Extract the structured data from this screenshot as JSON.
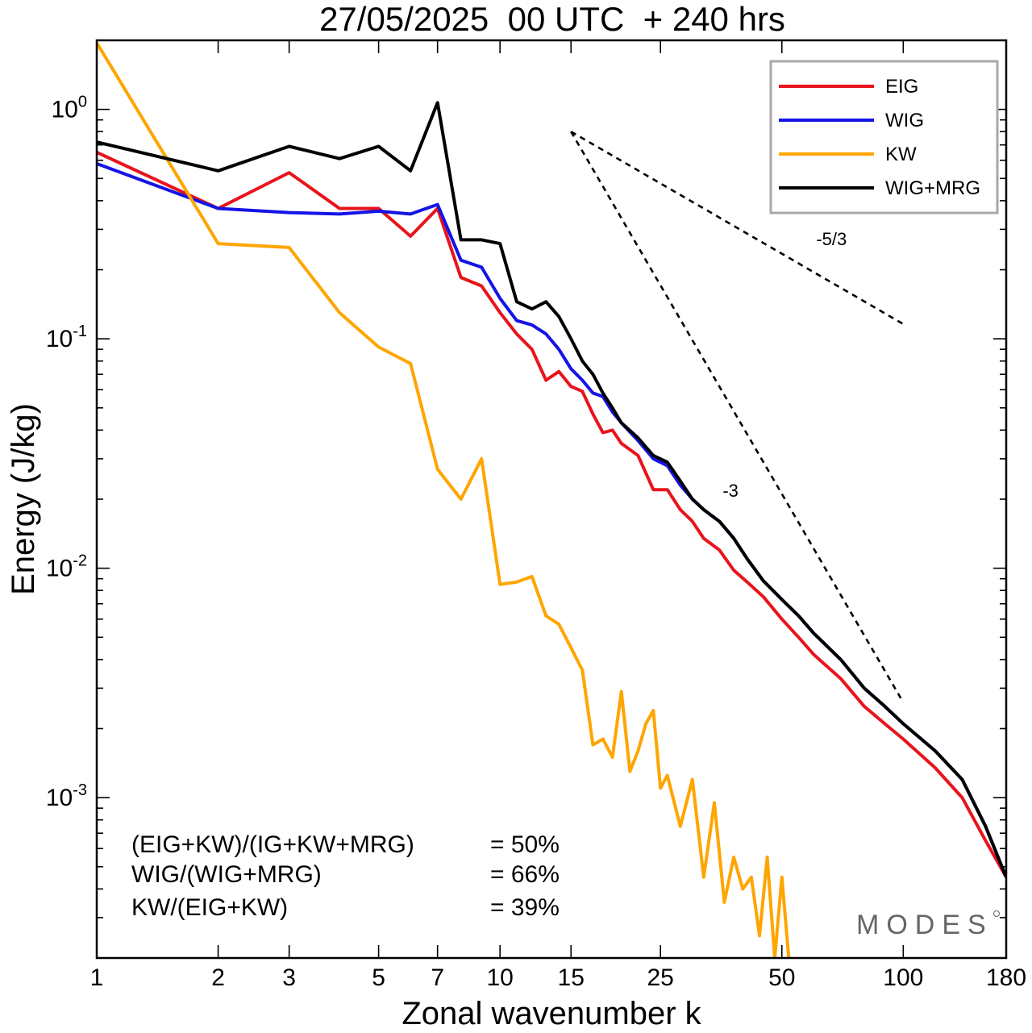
{
  "chart_data": {
    "type": "line",
    "title": "27/05/2025  00 UTC  + 240 hrs",
    "xlabel": "Zonal wavenumber k",
    "ylabel": "Energy (J/kg)",
    "x_scale": "log",
    "y_scale": "log",
    "xlim": [
      1,
      180
    ],
    "ylim": [
      0.0002,
      2.0
    ],
    "x_ticks": [
      1,
      2,
      3,
      5,
      7,
      10,
      15,
      25,
      50,
      100,
      180
    ],
    "y_ticks": [
      {
        "base": "10",
        "exp": "-3",
        "value": 0.001
      },
      {
        "base": "10",
        "exp": "-2",
        "value": 0.01
      },
      {
        "base": "10",
        "exp": "-1",
        "value": 0.1
      },
      {
        "base": "10",
        "exp": "0",
        "value": 1.0
      }
    ],
    "legend_position": "top-right",
    "series": [
      {
        "name": "EIG",
        "color": "#e8141c",
        "x": [
          1,
          2,
          3,
          4,
          5,
          6,
          7,
          8,
          9,
          10,
          11,
          12,
          13,
          14,
          15,
          16,
          17,
          18,
          19,
          20,
          22,
          24,
          26,
          28,
          30,
          32,
          35,
          38,
          41,
          45,
          50,
          55,
          60,
          70,
          80,
          90,
          100,
          120,
          140,
          160,
          180
        ],
        "y": [
          0.65,
          0.37,
          0.53,
          0.37,
          0.37,
          0.28,
          0.37,
          0.185,
          0.17,
          0.13,
          0.105,
          0.09,
          0.066,
          0.072,
          0.062,
          0.059,
          0.047,
          0.039,
          0.04,
          0.035,
          0.031,
          0.022,
          0.022,
          0.018,
          0.016,
          0.0135,
          0.012,
          0.0098,
          0.0087,
          0.0075,
          0.006,
          0.005,
          0.0042,
          0.0033,
          0.0025,
          0.0021,
          0.0018,
          0.00135,
          0.001,
          0.00065,
          0.00045
        ]
      },
      {
        "name": "WIG",
        "color": "#1414e6",
        "x": [
          1,
          2,
          3,
          4,
          5,
          6,
          7,
          8,
          9,
          10,
          11,
          12,
          13,
          14,
          15,
          16,
          17,
          18,
          19,
          20,
          22,
          24,
          26,
          28,
          30,
          32,
          35,
          38,
          41,
          45,
          50,
          55,
          60,
          70,
          80,
          90,
          100,
          120,
          140,
          160,
          180
        ],
        "y": [
          0.58,
          0.37,
          0.355,
          0.35,
          0.36,
          0.35,
          0.385,
          0.22,
          0.205,
          0.15,
          0.12,
          0.115,
          0.105,
          0.09,
          0.074,
          0.066,
          0.058,
          0.056,
          0.048,
          0.043,
          0.036,
          0.03,
          0.028,
          0.023,
          0.02,
          0.018,
          0.016,
          0.0135,
          0.011,
          0.0088,
          0.0073,
          0.0062,
          0.0052,
          0.004,
          0.003,
          0.0025,
          0.0021,
          0.0016,
          0.0012,
          0.00075,
          0.00045
        ]
      },
      {
        "name": "KW",
        "color": "#ffa500",
        "x": [
          1,
          2,
          3,
          4,
          5,
          6,
          7,
          8,
          9,
          10,
          11,
          12,
          13,
          14,
          15,
          16,
          17,
          18,
          19,
          20,
          21,
          22,
          23,
          24,
          25,
          26,
          28,
          30,
          32,
          34,
          36,
          38,
          40,
          42,
          44,
          46,
          48,
          50,
          52
        ],
        "y": [
          1.95,
          0.26,
          0.25,
          0.13,
          0.092,
          0.078,
          0.027,
          0.02,
          0.03,
          0.0085,
          0.0087,
          0.0092,
          0.0062,
          0.0057,
          0.0045,
          0.0036,
          0.0017,
          0.0018,
          0.0015,
          0.0029,
          0.0013,
          0.0016,
          0.0021,
          0.0024,
          0.0011,
          0.00125,
          0.00075,
          0.0012,
          0.00045,
          0.00095,
          0.00035,
          0.00055,
          0.0004,
          0.00045,
          0.00025,
          0.00055,
          0.0002,
          0.00045,
          0.0002
        ]
      },
      {
        "name": "WIG+MRG",
        "color": "#000000",
        "x": [
          1,
          2,
          3,
          4,
          5,
          6,
          7,
          8,
          9,
          10,
          11,
          12,
          13,
          14,
          15,
          16,
          17,
          18,
          19,
          20,
          22,
          24,
          26,
          28,
          30,
          32,
          35,
          38,
          41,
          45,
          50,
          55,
          60,
          70,
          80,
          90,
          100,
          120,
          140,
          160,
          180
        ],
        "y": [
          0.72,
          0.54,
          0.69,
          0.61,
          0.69,
          0.54,
          1.07,
          0.27,
          0.27,
          0.26,
          0.145,
          0.135,
          0.145,
          0.125,
          0.1,
          0.08,
          0.07,
          0.058,
          0.05,
          0.043,
          0.037,
          0.031,
          0.029,
          0.024,
          0.02,
          0.018,
          0.016,
          0.0135,
          0.011,
          0.0088,
          0.0073,
          0.0062,
          0.0052,
          0.004,
          0.003,
          0.0025,
          0.0021,
          0.0016,
          0.0012,
          0.00075,
          0.00045
        ]
      }
    ],
    "reference_lines": [
      {
        "label": "-5/3",
        "x": [
          15,
          100
        ],
        "y": [
          0.8,
          0.116
        ]
      },
      {
        "label": "-3",
        "x": [
          15,
          100
        ],
        "y": [
          0.8,
          0.0026
        ]
      }
    ],
    "annotations": [
      {
        "label": "(EIG+KW)/(IG+KW+MRG)",
        "value": "= 50%"
      },
      {
        "label": "WIG/(WIG+MRG)",
        "value": "= 66%"
      },
      {
        "label": "KW/(EIG+KW)",
        "value": "= 39%"
      }
    ],
    "watermark": "MODES"
  }
}
